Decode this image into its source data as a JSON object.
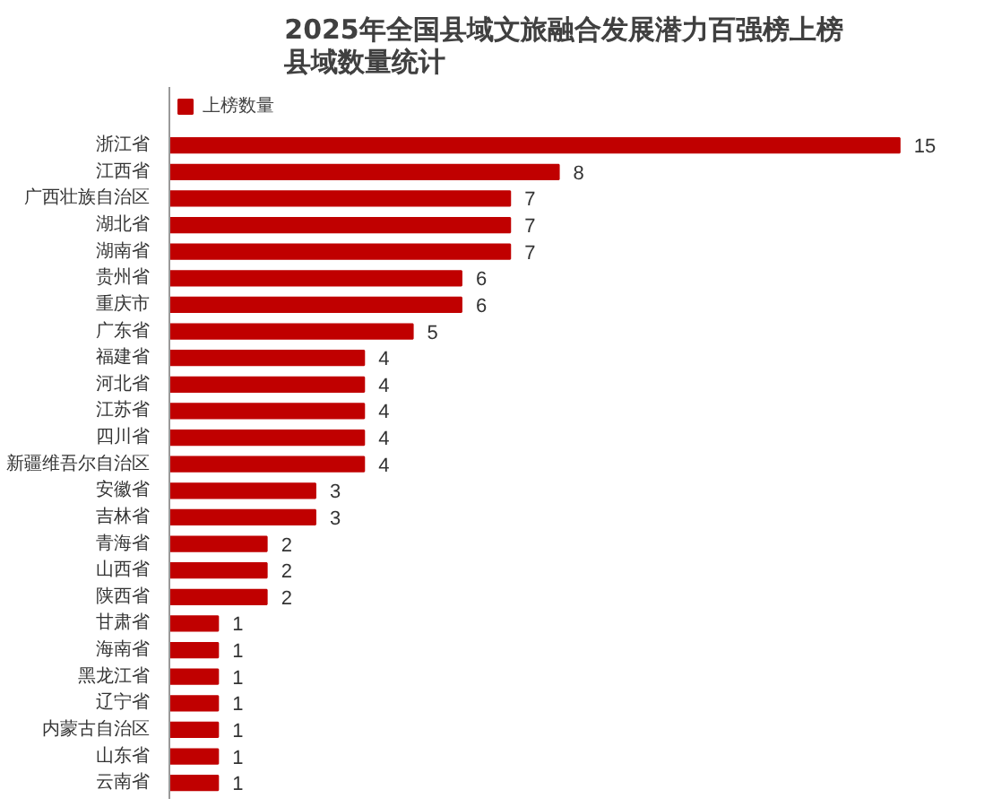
{
  "chart_data": {
    "type": "bar",
    "orientation": "horizontal",
    "title": "2025年全国县域文旅融合发展潜力百强榜上榜县域数量统计",
    "categories": [
      "浙江省",
      "江西省",
      "广西壮族自治区",
      "湖北省",
      "湖南省",
      "贵州省",
      "重庆市",
      "广东省",
      "福建省",
      "河北省",
      "江苏省",
      "四川省",
      "新疆维吾尔自治区",
      "安徽省",
      "吉林省",
      "青海省",
      "山西省",
      "陕西省",
      "甘肃省",
      "海南省",
      "黑龙江省",
      "辽宁省",
      "内蒙古自治区",
      "山东省",
      "云南省"
    ],
    "series": [
      {
        "name": "上榜数量",
        "color": "#c00000",
        "values": [
          15,
          8,
          7,
          7,
          7,
          6,
          6,
          5,
          4,
          4,
          4,
          4,
          4,
          3,
          3,
          2,
          2,
          2,
          1,
          1,
          1,
          1,
          1,
          1,
          1
        ]
      }
    ],
    "data_labels": true,
    "legend": "top left",
    "grid": false,
    "tick_labels": "y"
  }
}
